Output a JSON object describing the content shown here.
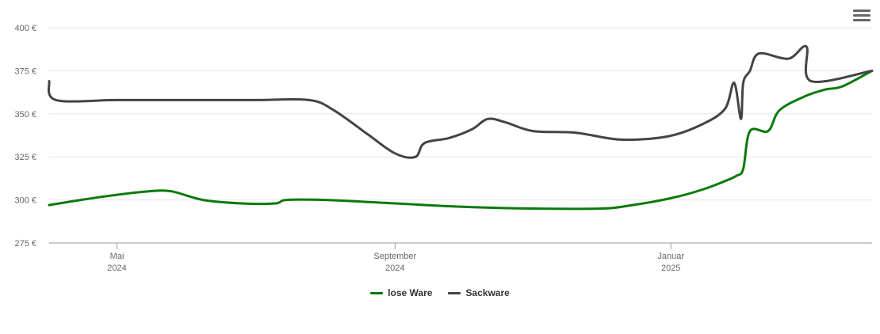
{
  "menu": {
    "icon": "hamburger-menu-icon"
  },
  "chart_data": {
    "type": "line",
    "title": "",
    "xlabel": "",
    "ylabel": "",
    "ylim": [
      275,
      400
    ],
    "yticks": [
      275,
      300,
      325,
      350,
      375,
      400
    ],
    "ytick_labels": [
      "275 €",
      "300 €",
      "325 €",
      "350 €",
      "375 €",
      "400 €"
    ],
    "xlim": [
      "2024-04-01",
      "2025-03-31"
    ],
    "xticks": [
      {
        "date": "2024-05-01",
        "month": "Mai",
        "year": "2024"
      },
      {
        "date": "2024-09-01",
        "month": "September",
        "year": "2024"
      },
      {
        "date": "2025-01-01",
        "month": "Januar",
        "year": "2025"
      }
    ],
    "grid": true,
    "legend_position": "bottom-center",
    "series": [
      {
        "name": "lose Ware",
        "color": "#0a7a0a",
        "points": [
          [
            "2024-04-01",
            297
          ],
          [
            "2024-04-15",
            300
          ],
          [
            "2024-05-01",
            303
          ],
          [
            "2024-05-15",
            305
          ],
          [
            "2024-05-25",
            305
          ],
          [
            "2024-06-08",
            300
          ],
          [
            "2024-06-25",
            298
          ],
          [
            "2024-07-10",
            298
          ],
          [
            "2024-07-15",
            300
          ],
          [
            "2024-08-01",
            300
          ],
          [
            "2024-09-01",
            298
          ],
          [
            "2024-10-01",
            296
          ],
          [
            "2024-11-01",
            295
          ],
          [
            "2024-12-01",
            295
          ],
          [
            "2024-12-15",
            297
          ],
          [
            "2025-01-01",
            301
          ],
          [
            "2025-01-15",
            306
          ],
          [
            "2025-01-25",
            311
          ],
          [
            "2025-01-30",
            314
          ],
          [
            "2025-02-02",
            318
          ],
          [
            "2025-02-05",
            340
          ],
          [
            "2025-02-13",
            340
          ],
          [
            "2025-02-18",
            352
          ],
          [
            "2025-03-01",
            360
          ],
          [
            "2025-03-10",
            364
          ],
          [
            "2025-03-18",
            366
          ],
          [
            "2025-03-31",
            375
          ]
        ]
      },
      {
        "name": "Sackware",
        "color": "#444444",
        "points": [
          [
            "2024-04-01",
            369
          ],
          [
            "2024-04-04",
            358
          ],
          [
            "2024-05-01",
            358
          ],
          [
            "2024-06-01",
            358
          ],
          [
            "2024-07-01",
            358
          ],
          [
            "2024-07-25",
            358
          ],
          [
            "2024-08-05",
            352
          ],
          [
            "2024-08-20",
            338
          ],
          [
            "2024-09-01",
            327
          ],
          [
            "2024-09-10",
            325
          ],
          [
            "2024-09-14",
            333
          ],
          [
            "2024-09-25",
            336
          ],
          [
            "2024-10-05",
            341
          ],
          [
            "2024-10-12",
            347
          ],
          [
            "2024-10-20",
            345
          ],
          [
            "2024-11-01",
            340
          ],
          [
            "2024-11-20",
            339
          ],
          [
            "2024-12-10",
            335
          ],
          [
            "2024-12-31",
            337
          ],
          [
            "2025-01-15",
            344
          ],
          [
            "2025-01-25",
            353
          ],
          [
            "2025-01-29",
            368
          ],
          [
            "2025-02-01",
            347
          ],
          [
            "2025-02-02",
            368
          ],
          [
            "2025-02-05",
            375
          ],
          [
            "2025-02-09",
            385
          ],
          [
            "2025-02-22",
            382
          ],
          [
            "2025-03-02",
            389
          ],
          [
            "2025-03-04",
            369
          ],
          [
            "2025-03-31",
            375
          ]
        ]
      }
    ]
  }
}
